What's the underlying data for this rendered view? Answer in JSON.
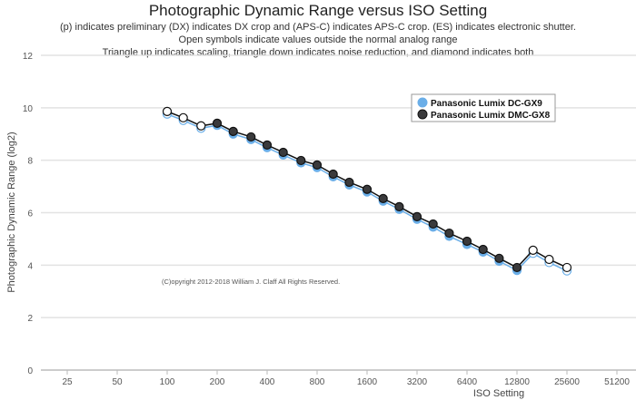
{
  "chart_data": {
    "type": "line",
    "title": "Photographic Dynamic Range versus ISO Setting",
    "subtitles": [
      "(p) indicates preliminary (DX) indicates DX crop and (APS-C) indicates APS-C crop. (ES) indicates electronic shutter.",
      "Open symbols indicate values outside the normal analog range",
      "Triangle up indicates scaling, triangle down indicates noise reduction, and diamond indicates both"
    ],
    "xlabel": "ISO Setting",
    "ylabel": "Photographic Dynamic Range (log2)",
    "x_scale": "log2",
    "xlim": [
      12.5,
      102400
    ],
    "ylim": [
      0,
      12
    ],
    "x_ticks": [
      "25",
      "50",
      "100",
      "200",
      "400",
      "800",
      "1600",
      "3200",
      "6400",
      "12800",
      "25600",
      "51200"
    ],
    "y_ticks": [
      "0",
      "2",
      "4",
      "6",
      "8",
      "10",
      "12"
    ],
    "grid": true,
    "legend_position": "top-right",
    "copyright": "(C)opyright 2012-2018 William J. Claff All Rights Reserved.",
    "x": [
      100,
      125,
      160,
      200,
      250,
      320,
      400,
      500,
      640,
      800,
      1000,
      1250,
      1600,
      2000,
      2500,
      3200,
      4000,
      5000,
      6400,
      8000,
      10000,
      12800,
      16000,
      20000,
      25600
    ],
    "series": [
      {
        "name": "Panasonic Lumix DC-GX9",
        "color": "#6aaee8",
        "open_x": [
          100,
          125,
          160,
          16000,
          20000,
          25600
        ],
        "values": [
          9.76,
          9.52,
          9.22,
          9.33,
          9.0,
          8.79,
          8.48,
          8.2,
          7.9,
          7.72,
          7.37,
          7.06,
          6.79,
          6.44,
          6.13,
          5.75,
          5.45,
          5.1,
          4.79,
          4.5,
          4.15,
          3.8,
          4.45,
          4.1,
          3.78
        ]
      },
      {
        "name": "Panasonic Lumix DMC-GX8",
        "color": "#3a3a3c",
        "open_x": [
          100,
          125,
          160,
          16000,
          20000,
          25600
        ],
        "values": [
          9.86,
          9.62,
          9.31,
          9.41,
          9.1,
          8.89,
          8.58,
          8.3,
          7.99,
          7.82,
          7.47,
          7.16,
          6.89,
          6.54,
          6.23,
          5.85,
          5.57,
          5.22,
          4.91,
          4.6,
          4.26,
          3.91,
          4.57,
          4.22,
          3.91
        ]
      }
    ]
  }
}
